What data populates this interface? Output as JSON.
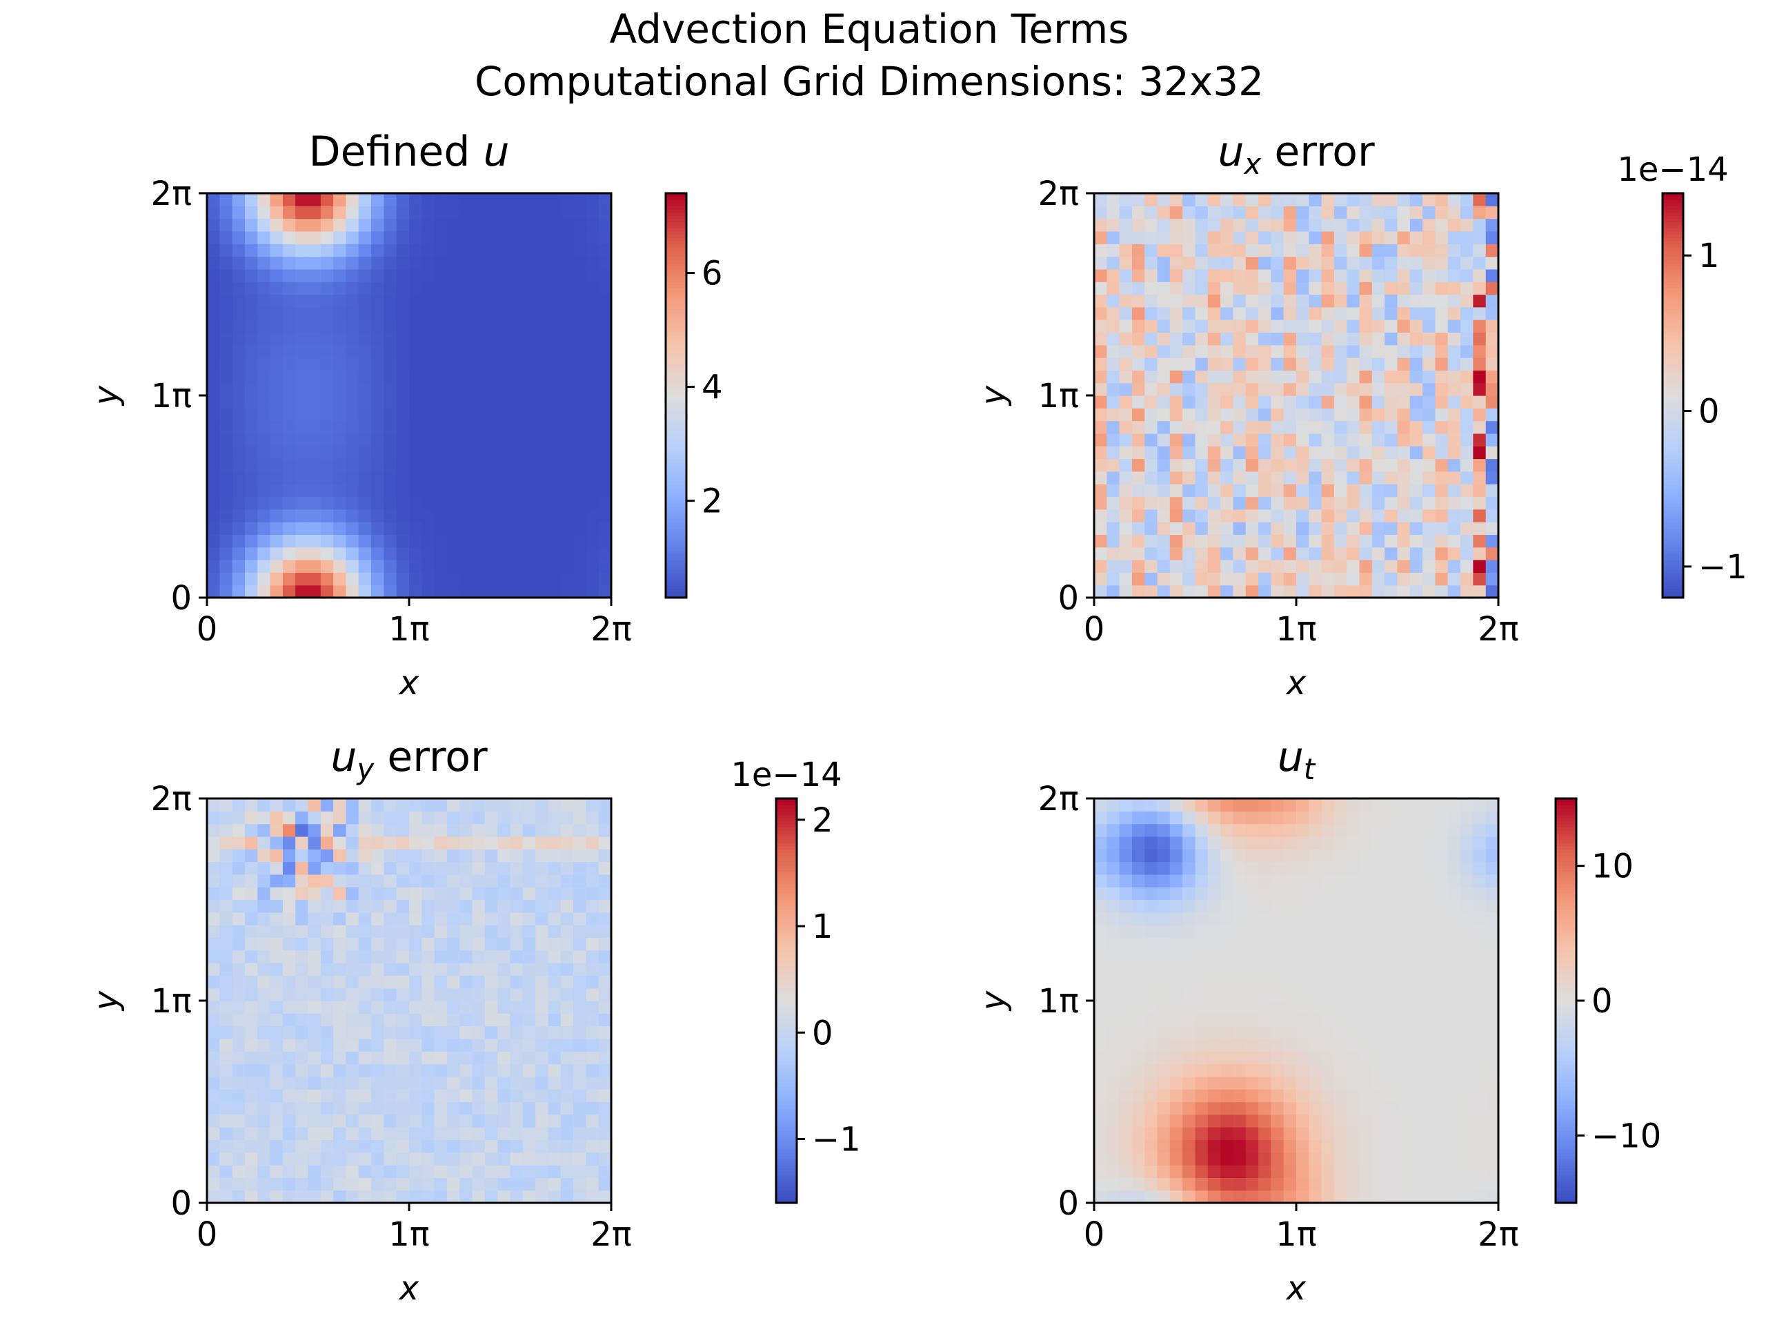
{
  "figure": {
    "title_line1": "Advection Equation Terms",
    "title_line2": "Computational Grid Dimensions: 32x32"
  },
  "chart_data": [
    {
      "type": "heatmap",
      "panel": "top-left",
      "title_text": "Defined ",
      "title_math": "u",
      "xlabel": "x",
      "ylabel": "y",
      "x_ticks": [
        "0",
        "1π",
        "2π"
      ],
      "y_ticks": [
        "0",
        "1π",
        "2π"
      ],
      "xlim": [
        0,
        6.283
      ],
      "ylim": [
        0,
        6.283
      ],
      "grid_size": [
        32,
        32
      ],
      "colormap": "coolwarm",
      "clim": [
        0.3,
        7.4
      ],
      "colorbar_ticks": [
        2,
        4,
        6
      ],
      "colorbar_tick_labels": [
        "2",
        "4",
        "6"
      ],
      "colorbar_offset": "",
      "field_description": "peaks of ~7.4 at (0.5π, 0) and (0.5π, 2π), minimum ~0.3 around (1.4π, 1π)"
    },
    {
      "type": "heatmap",
      "panel": "top-right",
      "title_math": "u",
      "title_sub": "x",
      "title_text": " error",
      "xlabel": "x",
      "ylabel": "y",
      "x_ticks": [
        "0",
        "1π",
        "2π"
      ],
      "y_ticks": [
        "0",
        "1π",
        "2π"
      ],
      "grid_size": [
        32,
        32
      ],
      "colormap": "coolwarm",
      "clim": [
        -1.2,
        1.4
      ],
      "colorbar_ticks": [
        -1,
        0,
        1
      ],
      "colorbar_tick_labels": [
        "−1",
        "0",
        "1"
      ],
      "colorbar_offset": "1e−14",
      "field_description": "noise-like round-off error of order 1e-14, strongest near x = 2π"
    },
    {
      "type": "heatmap",
      "panel": "bottom-left",
      "title_math": "u",
      "title_sub": "y",
      "title_text": " error",
      "xlabel": "x",
      "ylabel": "y",
      "x_ticks": [
        "0",
        "1π",
        "2π"
      ],
      "y_ticks": [
        "0",
        "1π",
        "2π"
      ],
      "grid_size": [
        32,
        32
      ],
      "colormap": "coolwarm",
      "clim": [
        -1.6,
        2.2
      ],
      "colorbar_ticks": [
        -1,
        0,
        1,
        2
      ],
      "colorbar_tick_labels": [
        "−1",
        "0",
        "1",
        "2"
      ],
      "colorbar_offset": "1e−14",
      "field_description": "noise-like round-off error of order 1e-14, strongest near (0.5π, 1.75π)"
    },
    {
      "type": "heatmap",
      "panel": "bottom-right",
      "title_math": "u",
      "title_sub": "t",
      "title_text": "",
      "xlabel": "x",
      "ylabel": "y",
      "x_ticks": [
        "0",
        "1π",
        "2π"
      ],
      "y_ticks": [
        "0",
        "1π",
        "2π"
      ],
      "grid_size": [
        32,
        32
      ],
      "colormap": "coolwarm",
      "clim": [
        -15,
        15
      ],
      "colorbar_ticks": [
        -10,
        0,
        10
      ],
      "colorbar_tick_labels": [
        "−10",
        "0",
        "10"
      ],
      "colorbar_offset": "",
      "field_description": "positive lobe ~15 near (0.67π, 0.25π), negative lobe ~-14 near (0.3π, 1.75π)"
    }
  ],
  "colors": {
    "cmap_low": "#3b4cc0",
    "cmap_mid": "#dddddd",
    "cmap_high": "#b40426"
  }
}
